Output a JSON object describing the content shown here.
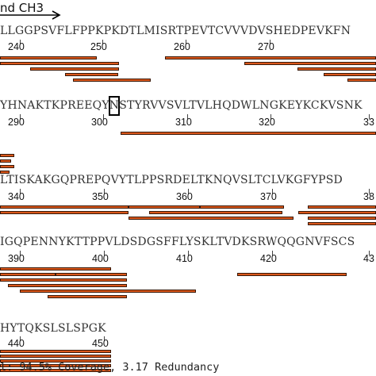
{
  "header": {
    "title": "nd CH3"
  },
  "rows": [
    {
      "sequence": "LLGGPSVFLFPPKPKDTLMISRTPEVTCVVVDVSHEDPEVKFN",
      "numbers": [
        "240",
        "250",
        "260",
        "270"
      ],
      "bars": 10
    },
    {
      "sequence": "YHNAKTKPREEQYNSTYRVVSVLTVLHQDWLNGKEYKCKVSNK",
      "numbers": [
        "290",
        "300",
        "310",
        "320",
        "33"
      ],
      "bars": 5
    },
    {
      "sequence": "LTISKAKGQPREPQVYTLPPSRDELTKNQVSLTCLVKGFYPSD",
      "numbers": [
        "340",
        "350",
        "360",
        "370",
        "38"
      ],
      "bars": 10
    },
    {
      "sequence": "IGQPENNYKTTPPVLDSDGSFFLYSKLTVDKSRWQQGNVFSCS",
      "numbers": [
        "390",
        "400",
        "410",
        "420",
        "43"
      ],
      "bars": 8
    },
    {
      "sequence": "HYTQKSLSLSPGK",
      "numbers": [
        "440",
        "450"
      ],
      "bars": 5
    }
  ],
  "summary": "l: 94.5% Coverage, 3.17 Redundancy",
  "colors": {
    "peptide_bar": "#d9561a",
    "bar_outline": "#3a1a0a"
  }
}
